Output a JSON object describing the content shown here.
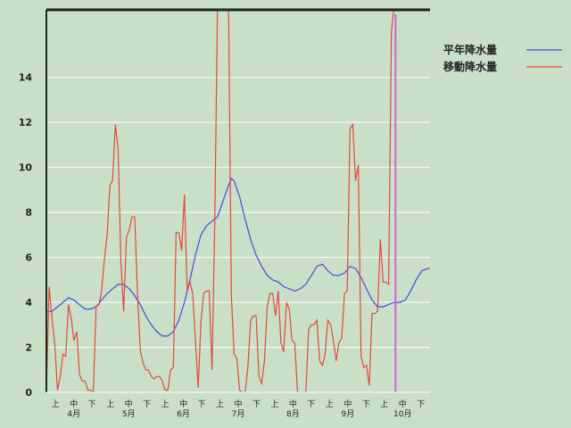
{
  "chart_data": {
    "type": "line",
    "title": "",
    "xlabel": "",
    "ylabel": "",
    "ylim": [
      0,
      17
    ],
    "yticks": [
      0,
      2,
      4,
      6,
      8,
      10,
      12,
      14
    ],
    "grid": true,
    "legend_position": "top-right",
    "x_ticks": {
      "dekads": [
        "上",
        "中",
        "下"
      ],
      "months": [
        "4月",
        "5月",
        "6月",
        "7月",
        "8月",
        "9月",
        "10月"
      ]
    },
    "series": [
      {
        "name": "平年降水量",
        "color": "#4a4ae0",
        "points": [
          [
            0,
            3.6
          ],
          [
            2,
            3.6
          ],
          [
            4,
            3.8
          ],
          [
            6,
            4.0
          ],
          [
            8,
            4.2
          ],
          [
            10,
            4.1
          ],
          [
            12,
            3.9
          ],
          [
            14,
            3.7
          ],
          [
            16,
            3.7
          ],
          [
            18,
            3.8
          ],
          [
            20,
            4.1
          ],
          [
            22,
            4.4
          ],
          [
            24,
            4.6
          ],
          [
            26,
            4.8
          ],
          [
            28,
            4.8
          ],
          [
            30,
            4.6
          ],
          [
            32,
            4.3
          ],
          [
            34,
            3.9
          ],
          [
            36,
            3.4
          ],
          [
            38,
            3.0
          ],
          [
            40,
            2.7
          ],
          [
            42,
            2.5
          ],
          [
            44,
            2.5
          ],
          [
            46,
            2.7
          ],
          [
            48,
            3.2
          ],
          [
            50,
            4.0
          ],
          [
            52,
            5.0
          ],
          [
            54,
            6.1
          ],
          [
            56,
            7.0
          ],
          [
            58,
            7.4
          ],
          [
            60,
            7.6
          ],
          [
            62,
            7.8
          ],
          [
            64,
            8.5
          ],
          [
            66,
            9.2
          ],
          [
            67,
            9.5
          ],
          [
            68,
            9.4
          ],
          [
            70,
            8.7
          ],
          [
            72,
            7.7
          ],
          [
            74,
            6.8
          ],
          [
            76,
            6.1
          ],
          [
            78,
            5.6
          ],
          [
            80,
            5.2
          ],
          [
            82,
            5.0
          ],
          [
            84,
            4.9
          ],
          [
            86,
            4.7
          ],
          [
            88,
            4.6
          ],
          [
            90,
            4.5
          ],
          [
            92,
            4.6
          ],
          [
            94,
            4.8
          ],
          [
            96,
            5.2
          ],
          [
            98,
            5.6
          ],
          [
            100,
            5.7
          ],
          [
            102,
            5.4
          ],
          [
            104,
            5.2
          ],
          [
            106,
            5.2
          ],
          [
            108,
            5.3
          ],
          [
            110,
            5.6
          ],
          [
            112,
            5.5
          ],
          [
            114,
            5.1
          ],
          [
            116,
            4.6
          ],
          [
            118,
            4.1
          ],
          [
            120,
            3.8
          ],
          [
            122,
            3.8
          ],
          [
            124,
            3.9
          ],
          [
            126,
            4.0
          ],
          [
            128,
            4.0
          ],
          [
            130,
            4.1
          ],
          [
            132,
            4.5
          ],
          [
            134,
            5.0
          ],
          [
            136,
            5.4
          ],
          [
            138,
            5.5
          ],
          [
            139,
            5.5
          ]
        ]
      },
      {
        "name": "移動降水量",
        "color": "#e04a3a",
        "points": [
          [
            0,
            0
          ],
          [
            1,
            4.7
          ],
          [
            2,
            3.3
          ],
          [
            3,
            2.2
          ],
          [
            4,
            0.1
          ],
          [
            5,
            0.7
          ],
          [
            6,
            1.7
          ],
          [
            7,
            1.6
          ],
          [
            8,
            3.9
          ],
          [
            9,
            3.3
          ],
          [
            10,
            2.3
          ],
          [
            11,
            2.7
          ],
          [
            12,
            0.8
          ],
          [
            13,
            0.5
          ],
          [
            14,
            0.5
          ],
          [
            15,
            0.1
          ],
          [
            16,
            0.1
          ],
          [
            17,
            0
          ],
          [
            18,
            3.8
          ],
          [
            19,
            3.9
          ],
          [
            20,
            4.5
          ],
          [
            21,
            5.9
          ],
          [
            22,
            7.0
          ],
          [
            23,
            9.2
          ],
          [
            24,
            9.4
          ],
          [
            25,
            11.9
          ],
          [
            26,
            10.8
          ],
          [
            27,
            5.8
          ],
          [
            28,
            3.6
          ],
          [
            29,
            6.9
          ],
          [
            30,
            7.2
          ],
          [
            31,
            7.8
          ],
          [
            32,
            7.8
          ],
          [
            33,
            4.4
          ],
          [
            34,
            1.9
          ],
          [
            35,
            1.3
          ],
          [
            36,
            1.0
          ],
          [
            37,
            1.0
          ],
          [
            38,
            0.7
          ],
          [
            39,
            0.6
          ],
          [
            40,
            0.7
          ],
          [
            41,
            0.7
          ],
          [
            42,
            0.5
          ],
          [
            43,
            0.1
          ],
          [
            44,
            0.1
          ],
          [
            45,
            1.0
          ],
          [
            46,
            1.1
          ],
          [
            47,
            7.1
          ],
          [
            48,
            7.1
          ],
          [
            49,
            6.3
          ],
          [
            50,
            8.8
          ],
          [
            51,
            4.5
          ],
          [
            52,
            4.9
          ],
          [
            53,
            4.4
          ],
          [
            54,
            2.3
          ],
          [
            55,
            0.2
          ],
          [
            56,
            3.1
          ],
          [
            57,
            4.4
          ],
          [
            58,
            4.5
          ],
          [
            59,
            4.5
          ],
          [
            60,
            1.0
          ],
          [
            61,
            7.5
          ],
          [
            62,
            17.2
          ],
          [
            63,
            17.2
          ],
          [
            64,
            17.2
          ],
          [
            65,
            17.2
          ],
          [
            66,
            17.2
          ],
          [
            67,
            4.3
          ],
          [
            68,
            1.7
          ],
          [
            69,
            1.5
          ],
          [
            70,
            0.1
          ],
          [
            71,
            0
          ],
          [
            72,
            0
          ],
          [
            73,
            1.1
          ],
          [
            74,
            3.2
          ],
          [
            75,
            3.4
          ],
          [
            76,
            3.4
          ],
          [
            77,
            0.7
          ],
          [
            78,
            0.4
          ],
          [
            79,
            1.4
          ],
          [
            80,
            3.8
          ],
          [
            81,
            4.4
          ],
          [
            82,
            4.4
          ],
          [
            83,
            3.4
          ],
          [
            84,
            4.5
          ],
          [
            85,
            2.2
          ],
          [
            86,
            1.8
          ],
          [
            87,
            4.0
          ],
          [
            88,
            3.7
          ],
          [
            89,
            2.3
          ],
          [
            90,
            2.2
          ],
          [
            91,
            0
          ],
          [
            92,
            0
          ],
          [
            93,
            0
          ],
          [
            94,
            0
          ],
          [
            95,
            2.8
          ],
          [
            96,
            3.0
          ],
          [
            97,
            3.0
          ],
          [
            98,
            3.2
          ],
          [
            99,
            1.4
          ],
          [
            100,
            1.2
          ],
          [
            101,
            1.7
          ],
          [
            102,
            3.2
          ],
          [
            103,
            3.0
          ],
          [
            104,
            2.3
          ],
          [
            105,
            1.4
          ],
          [
            106,
            2.2
          ],
          [
            107,
            2.4
          ],
          [
            108,
            4.4
          ],
          [
            109,
            4.5
          ],
          [
            110,
            11.7
          ],
          [
            111,
            11.9
          ],
          [
            112,
            9.4
          ],
          [
            113,
            10.1
          ],
          [
            114,
            1.6
          ],
          [
            115,
            1.1
          ],
          [
            116,
            1.2
          ],
          [
            117,
            0.3
          ],
          [
            118,
            3.5
          ],
          [
            119,
            3.5
          ],
          [
            120,
            3.6
          ],
          [
            121,
            6.8
          ],
          [
            122,
            4.9
          ],
          [
            123,
            4.9
          ],
          [
            124,
            4.8
          ],
          [
            125,
            16.0
          ],
          [
            126,
            17.2
          ]
        ]
      }
    ]
  },
  "colors": {
    "background": "#c9dfc7",
    "grid": "#ffffff",
    "axis": "#1a2a1a",
    "marker_line": "#cc66cc"
  }
}
